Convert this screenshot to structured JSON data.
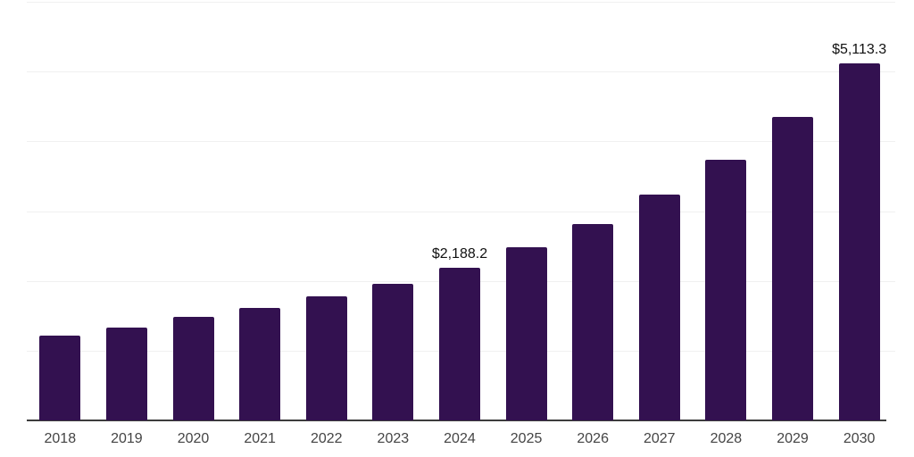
{
  "chart_data": {
    "type": "bar",
    "title": "",
    "xlabel": "",
    "ylabel": "",
    "categories": [
      "2018",
      "2019",
      "2020",
      "2021",
      "2022",
      "2023",
      "2024",
      "2025",
      "2026",
      "2027",
      "2028",
      "2029",
      "2030"
    ],
    "values": [
      1215,
      1330,
      1480,
      1615,
      1775,
      1955,
      2188.2,
      2480,
      2810,
      3235,
      3730,
      4345,
      5113.3
    ],
    "data_labels": {
      "2024": "$2,188.2",
      "2030": "$5,113.3"
    },
    "ylim": [
      0,
      6000
    ],
    "gridline_step": 1000,
    "grid": "horizontal-only",
    "legend": "none",
    "y_tick_labels": "none",
    "colors": {
      "bar": "#331150",
      "gridline": "#f0f0f0",
      "axis_line": "#3d3d3d",
      "tick_label": "#444444",
      "data_label": "#111111",
      "background": "#ffffff"
    }
  }
}
